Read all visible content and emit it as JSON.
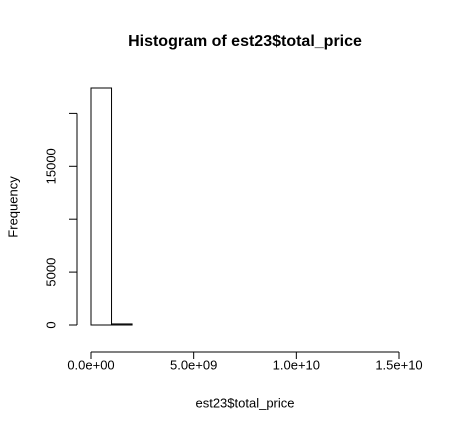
{
  "chart_data": {
    "type": "histogram",
    "title": "Histogram of est23$total_price",
    "xlabel": "est23$total_price",
    "ylabel": "Frequency",
    "bins": [
      0,
      1000000000,
      2000000000,
      3000000000,
      4000000000,
      5000000000,
      6000000000,
      7000000000,
      8000000000,
      9000000000,
      10000000000,
      11000000000,
      12000000000,
      13000000000,
      14000000000,
      15000000000
    ],
    "counts": [
      22400,
      100,
      0,
      0,
      0,
      0,
      0,
      0,
      0,
      0,
      0,
      0,
      0,
      0,
      0
    ],
    "color": "#ffffff",
    "xlim": [
      0,
      15000000000
    ],
    "xticks": [
      {
        "value": 0,
        "label": "0.0e+00"
      },
      {
        "value": 5000000000,
        "label": "5.0e+09"
      },
      {
        "value": 10000000000,
        "label": "1.0e+10"
      },
      {
        "value": 15000000000,
        "label": "1.5e+10"
      }
    ],
    "ylim": [
      0,
      22400
    ],
    "yticks": [
      0,
      5000,
      15000
    ],
    "unlabeled_yticks": [
      10000,
      20000
    ],
    "grid": false
  }
}
